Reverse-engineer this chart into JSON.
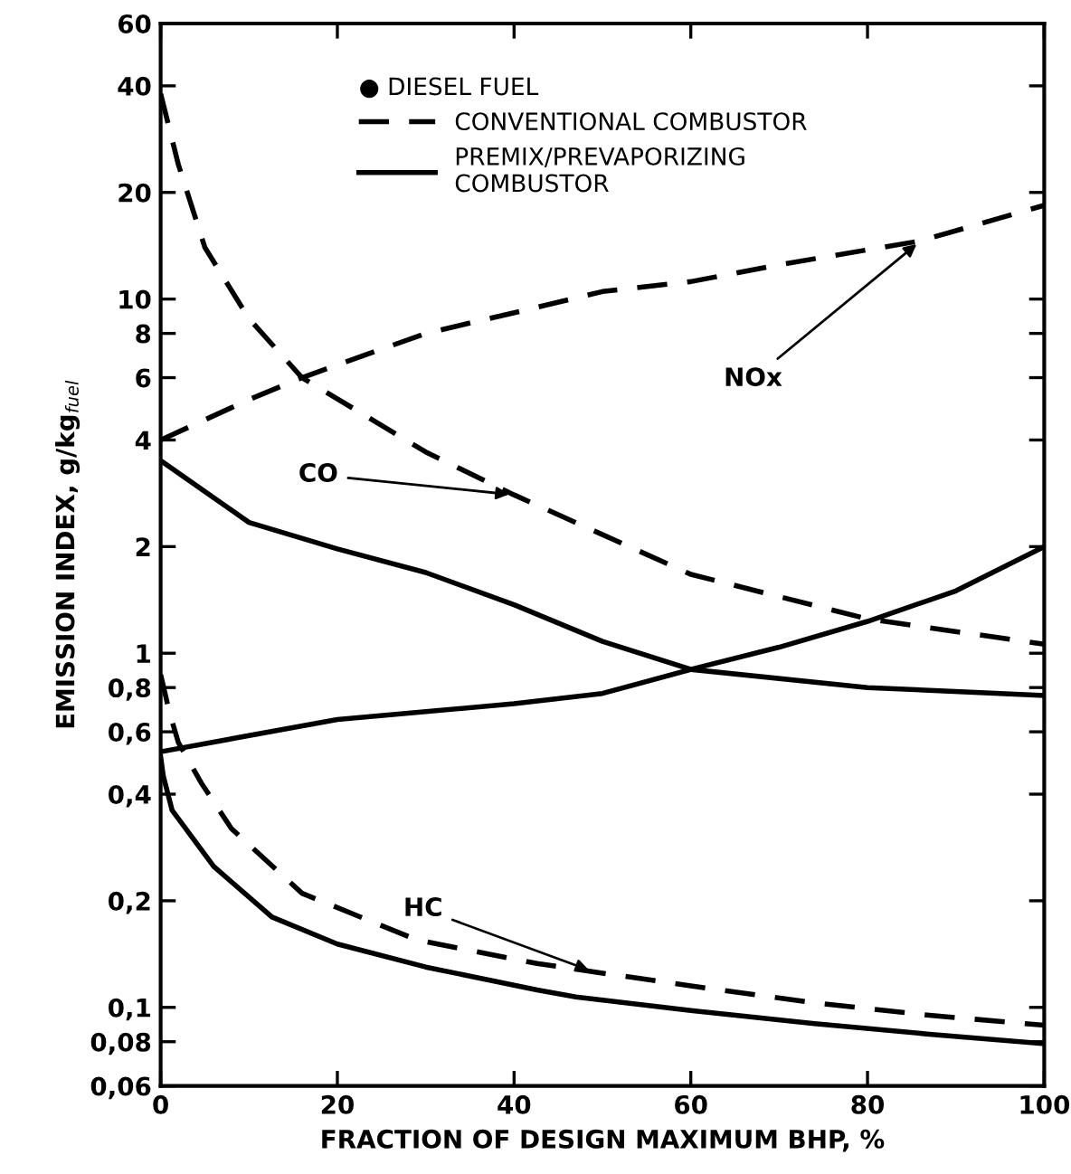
{
  "chart_data": {
    "type": "line",
    "xlabel": "FRACTION OF DESIGN MAXIMUM BHP, %",
    "ylabel": "EMISSION INDEX, g/kg$_{fuel}$",
    "legend_title": "● DIESEL FUEL",
    "legend": "top left",
    "log": "y",
    "grid": false,
    "xlim": [
      0,
      100
    ],
    "xticks": [
      0,
      20,
      40,
      60,
      80,
      100
    ],
    "ylim": [
      0.06,
      60
    ],
    "yticks": [
      {
        "value": 0.06,
        "label": "0,06"
      },
      {
        "value": 0.08,
        "label": "0,08"
      },
      {
        "value": 0.1,
        "label": "0,1"
      },
      {
        "value": 0.2,
        "label": "0,2"
      },
      {
        "value": 0.4,
        "label": "0,4"
      },
      {
        "value": 0.6,
        "label": "0,6"
      },
      {
        "value": 0.8,
        "label": "0,8"
      },
      1,
      2,
      4,
      6,
      8,
      10,
      20,
      40,
      60
    ],
    "series": [
      {
        "name": "CONVENTIONAL COMBUSTOR",
        "color": "#000000",
        "line_style": "dashed",
        "x": [
          0,
          2,
          5,
          10,
          16,
          30,
          40,
          60,
          80,
          100
        ],
        "values": [
          38,
          24,
          14,
          8.8,
          6.0,
          3.7,
          2.8,
          1.67,
          1.25,
          1.06
        ]
      },
      {
        "color": "#000000",
        "line_style": "dashed",
        "x": [
          0,
          10,
          16,
          30,
          42,
          50,
          60,
          70,
          86,
          100
        ],
        "values": [
          4.0,
          5.2,
          6.0,
          8.0,
          9.4,
          10.5,
          11.2,
          12.5,
          14.6,
          18.4
        ]
      },
      {
        "color": "#000000",
        "line_style": "dashed",
        "x": [
          0,
          1,
          2,
          4.6,
          8,
          16,
          29,
          42.6,
          49,
          60,
          74,
          87,
          100
        ],
        "values": [
          0.87,
          0.68,
          0.56,
          0.43,
          0.32,
          0.21,
          0.155,
          0.133,
          0.126,
          0.115,
          0.103,
          0.095,
          0.089
        ]
      },
      {
        "name": "PREMIX/PREVAPORIZING\nCOMBUSTOR",
        "color": "#000000",
        "line_style": "solid",
        "x": [
          0,
          10,
          20,
          30,
          40,
          50,
          60,
          80,
          100
        ],
        "values": [
          3.5,
          2.34,
          1.97,
          1.69,
          1.37,
          1.08,
          0.9,
          0.8,
          0.76
        ]
      },
      {
        "color": "#000000",
        "line_style": "solid",
        "x": [
          0,
          20,
          40,
          50,
          60,
          70,
          80,
          90,
          100
        ],
        "values": [
          0.527,
          0.65,
          0.72,
          0.77,
          0.9,
          1.04,
          1.23,
          1.5,
          2.0
        ]
      },
      {
        "color": "#000000",
        "line_style": "solid",
        "x": [
          0,
          0.3,
          1.3,
          6,
          12.6,
          20,
          30,
          42.6,
          47,
          60,
          74,
          87,
          100
        ],
        "values": [
          0.51,
          0.45,
          0.36,
          0.25,
          0.18,
          0.151,
          0.13,
          0.112,
          0.107,
          0.098,
          0.09,
          0.084,
          0.079
        ]
      }
    ],
    "annotations": [
      {
        "text": "CO",
        "x": 40,
        "y": 2.8
      },
      {
        "text": "NOx",
        "x": 86,
        "y": 14.6
      },
      {
        "text": "HC",
        "x": 49,
        "y": 0.126
      }
    ]
  }
}
